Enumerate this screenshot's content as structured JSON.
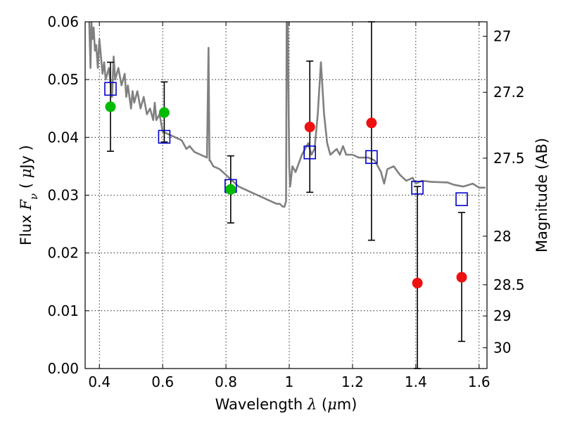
{
  "chart_data": {
    "type": "scatter",
    "xlabel_parts": [
      "Wavelength  ",
      "λ",
      " (",
      "μ",
      "m)"
    ],
    "ylabel_parts": [
      "Flux  ",
      "F",
      "ν",
      "  ( ",
      "μ",
      "Jy )"
    ],
    "y2label": "Magnitude (AB)",
    "xlim": [
      0.355,
      1.625
    ],
    "ylim": [
      0.0,
      0.06
    ],
    "x_ticks": [
      0.4,
      0.6,
      0.8,
      1.0,
      1.2,
      1.4,
      1.6
    ],
    "x_tick_labels": [
      "0.4",
      "0.6",
      "0.8",
      "1",
      "1.2",
      "1.4",
      "1.6"
    ],
    "y_ticks": [
      0.0,
      0.01,
      0.02,
      0.03,
      0.04,
      0.05,
      0.06
    ],
    "y_tick_labels": [
      "0.00",
      "0.01",
      "0.02",
      "0.03",
      "0.04",
      "0.05",
      "0.06"
    ],
    "y2_ticks": [
      {
        "label": "27",
        "flux": 0.0575
      },
      {
        "label": "27.2",
        "flux": 0.0478
      },
      {
        "label": "27.5",
        "flux": 0.0364
      },
      {
        "label": "28",
        "flux": 0.0229
      },
      {
        "label": "28.5",
        "flux": 0.0145
      },
      {
        "label": "29",
        "flux": 0.0091
      },
      {
        "label": "30",
        "flux": 0.0036
      }
    ],
    "grid": true,
    "colors": {
      "template": "#808080",
      "model": "#0000cc",
      "observed_green": "#00bb00",
      "observed_red": "#ee1111",
      "errorbar": "#000000"
    },
    "series": [
      {
        "kind": "line",
        "x": [
          0.368,
          0.372,
          0.375,
          0.378,
          0.382,
          0.386,
          0.39,
          0.395,
          0.4,
          0.41,
          0.415,
          0.42,
          0.43,
          0.44,
          0.445,
          0.45,
          0.46,
          0.47,
          0.48,
          0.485,
          0.49,
          0.5,
          0.505,
          0.51,
          0.52,
          0.53,
          0.54,
          0.55,
          0.56,
          0.57,
          0.575,
          0.58,
          0.59,
          0.6,
          0.62,
          0.64,
          0.66,
          0.675,
          0.685,
          0.7,
          0.72,
          0.74,
          0.745,
          0.748,
          0.75,
          0.76,
          0.78,
          0.8,
          0.82,
          0.84,
          0.86,
          0.88,
          0.9,
          0.92,
          0.94,
          0.96,
          0.97,
          0.98,
          0.985,
          0.99,
          0.992,
          0.995,
          1.0,
          1.003,
          1.01,
          1.02,
          1.04,
          1.06,
          1.07,
          1.08,
          1.09,
          1.1,
          1.11,
          1.12,
          1.13,
          1.15,
          1.16,
          1.17,
          1.18,
          1.2,
          1.22,
          1.25,
          1.27,
          1.29,
          1.3,
          1.31,
          1.33,
          1.35,
          1.37,
          1.39,
          1.4,
          1.42,
          1.45,
          1.5,
          1.52,
          1.55,
          1.58,
          1.6,
          1.62
        ],
        "y": [
          0.06,
          0.052,
          0.06,
          0.057,
          0.059,
          0.055,
          0.056,
          0.052,
          0.057,
          0.051,
          0.053,
          0.05,
          0.052,
          0.047,
          0.054,
          0.05,
          0.052,
          0.049,
          0.051,
          0.047,
          0.049,
          0.045,
          0.048,
          0.046,
          0.048,
          0.045,
          0.047,
          0.044,
          0.045,
          0.043,
          0.046,
          0.043,
          0.044,
          0.041,
          0.0405,
          0.04,
          0.0395,
          0.038,
          0.0385,
          0.0375,
          0.037,
          0.0365,
          0.0555,
          0.036,
          0.036,
          0.035,
          0.0345,
          0.0335,
          0.0325,
          0.0315,
          0.031,
          0.0305,
          0.03,
          0.0295,
          0.029,
          0.0285,
          0.0285,
          0.028,
          0.028,
          0.029,
          0.062,
          0.062,
          0.035,
          0.0315,
          0.035,
          0.034,
          0.037,
          0.039,
          0.037,
          0.038,
          0.044,
          0.053,
          0.044,
          0.039,
          0.037,
          0.038,
          0.037,
          0.0385,
          0.037,
          0.037,
          0.0365,
          0.0365,
          0.036,
          0.034,
          0.032,
          0.0345,
          0.035,
          0.0335,
          0.0325,
          0.033,
          0.032,
          0.0325,
          0.0323,
          0.0322,
          0.0318,
          0.0315,
          0.032,
          0.0313,
          0.0313
        ]
      },
      {
        "kind": "open-square",
        "x": [
          0.435,
          0.605,
          0.815,
          1.065,
          1.26,
          1.405,
          1.545
        ],
        "y": [
          0.0484,
          0.0401,
          0.0316,
          0.0374,
          0.0366,
          0.0313,
          0.0293
        ]
      },
      {
        "kind": "filled-circle",
        "color_key": "observed_green",
        "x": [
          0.435,
          0.605,
          0.815
        ],
        "y": [
          0.0453,
          0.0443,
          0.031
        ],
        "yerr_low": [
          0.0077,
          0.0051,
          0.0058
        ],
        "yerr_high": [
          0.0077,
          0.0053,
          0.0058
        ]
      },
      {
        "kind": "filled-circle",
        "color_key": "observed_red",
        "x": [
          1.065,
          1.26,
          1.405,
          1.545
        ],
        "y": [
          0.0418,
          0.0425,
          0.0148,
          0.0158
        ],
        "yerr_low": [
          0.0113,
          0.0203,
          0.0148,
          0.0111
        ],
        "yerr_high": [
          0.0114,
          0.0175,
          0.0167,
          0.0112
        ]
      }
    ]
  }
}
